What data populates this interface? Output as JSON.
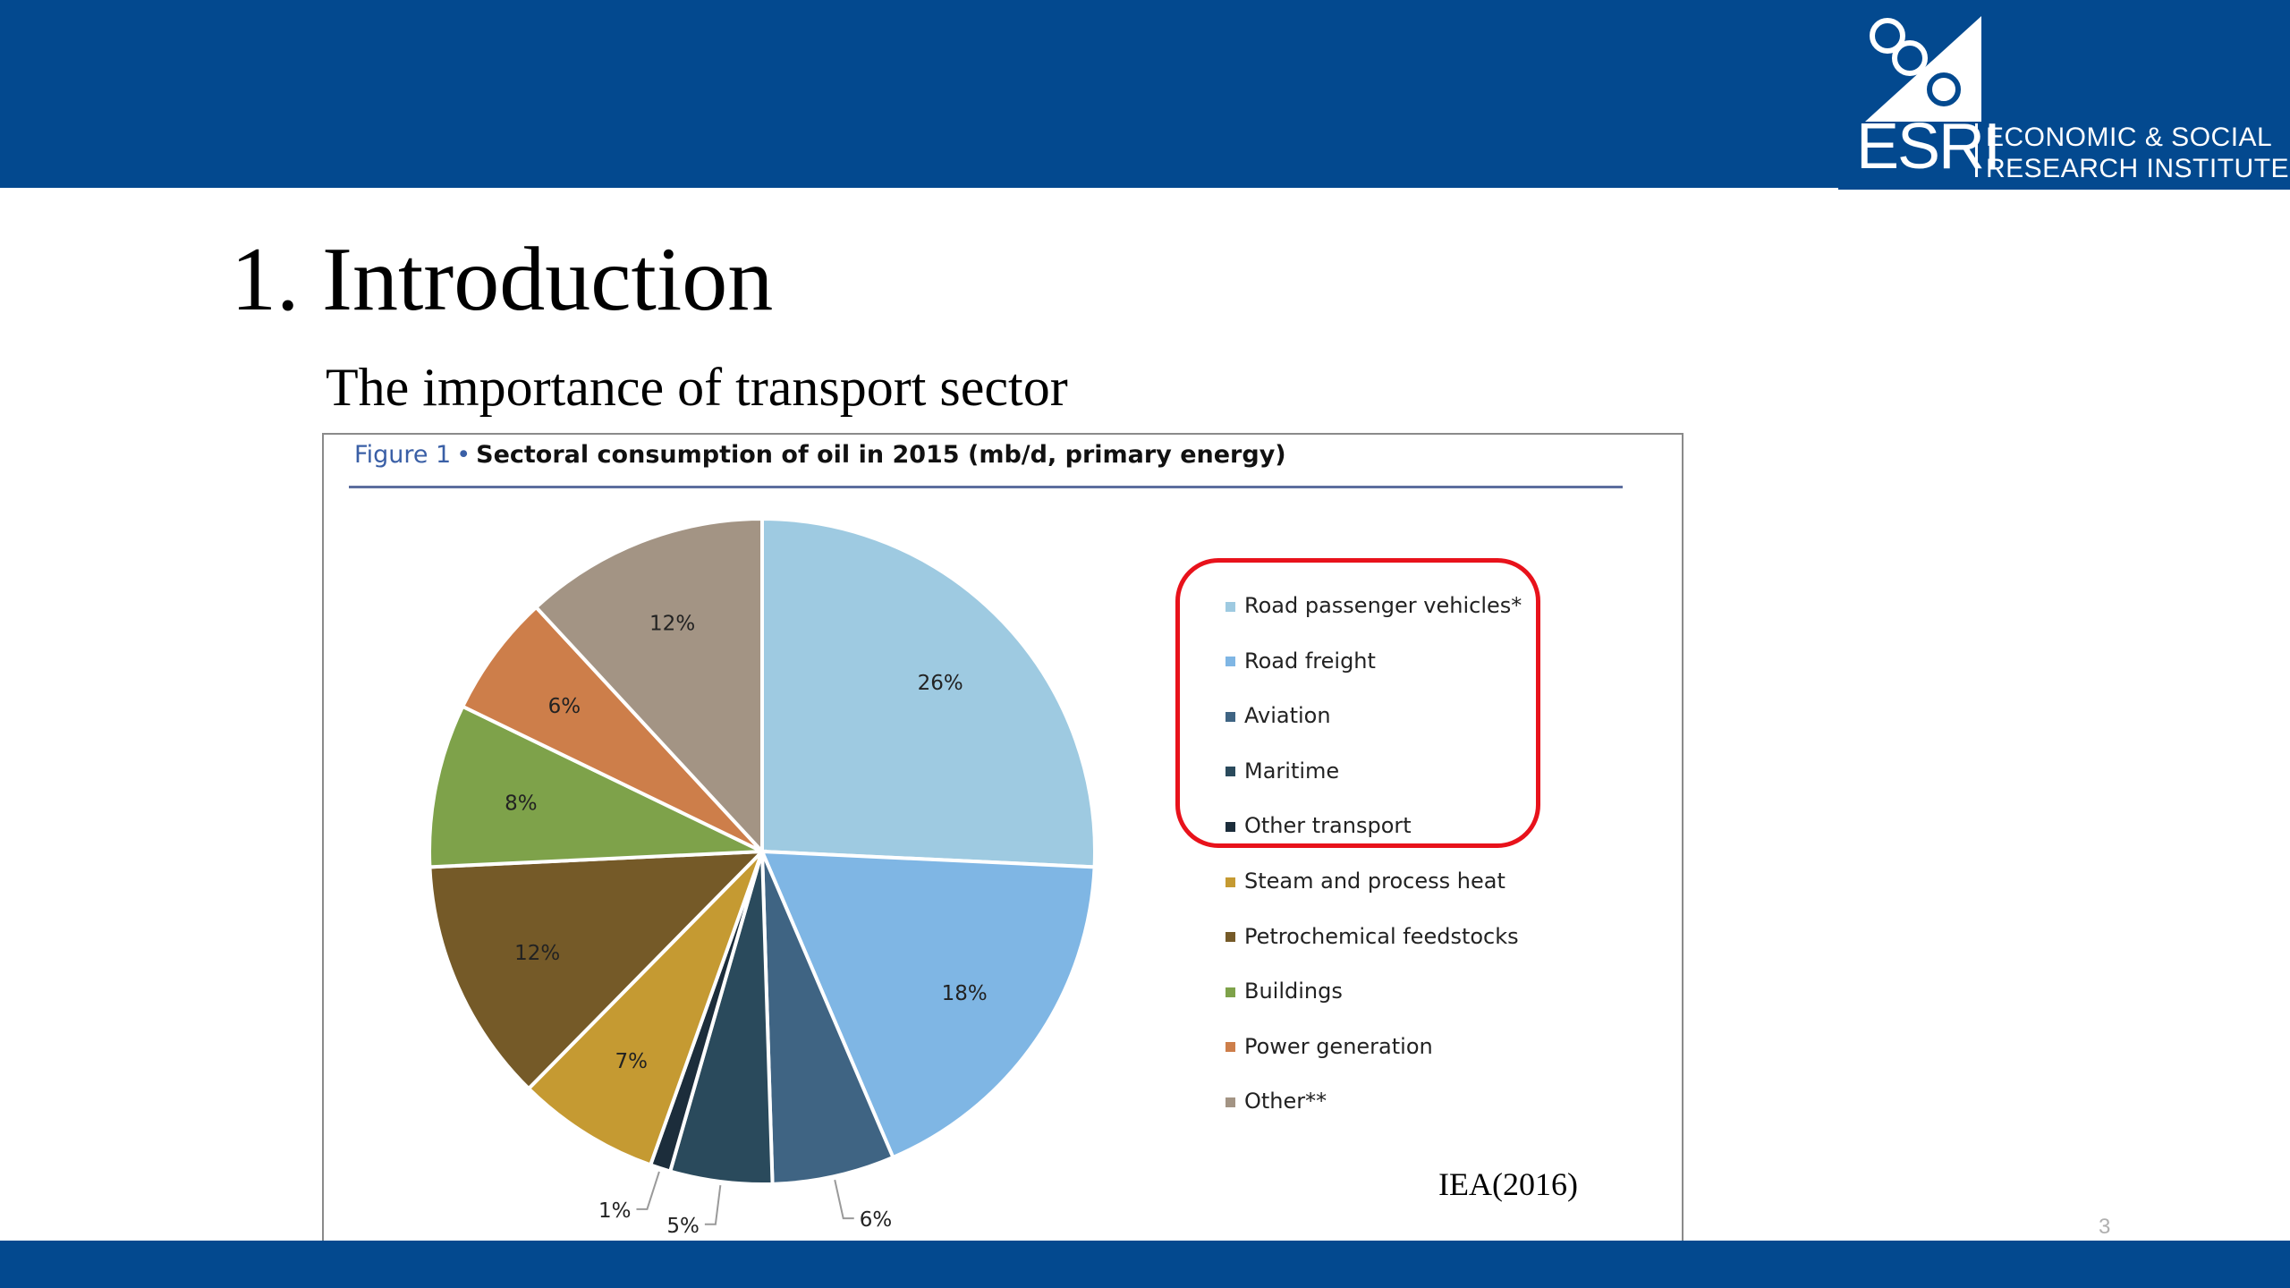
{
  "logo": {
    "mark_text": "ESRI",
    "name_line1": "ECONOMIC & SOCIAL",
    "name_line2": "RESEARCH INSTITUTE"
  },
  "slide": {
    "title": "1. Introduction",
    "subtitle": "The importance of transport sector",
    "source": "IEA(2016)",
    "page_number": "3"
  },
  "figure": {
    "label": "Figure 1",
    "bullet": "•",
    "title": "Sectoral consumption of oil in 2015 (mb/d, primary energy)"
  },
  "colors": {
    "brand": "#03498f",
    "highlight": "#e8121b"
  },
  "chart_data": {
    "type": "pie",
    "title": "Sectoral consumption of oil in 2015 (mb/d, primary energy)",
    "unit": "%",
    "legend_position": "right",
    "highlighted_categories": [
      "Road passenger vehicles*",
      "Road freight",
      "Aviation",
      "Maritime",
      "Other transport"
    ],
    "slices": [
      {
        "label": "Road passenger vehicles*",
        "value": 26,
        "value_label": "26%",
        "color": "#9ecae1"
      },
      {
        "label": "Road freight",
        "value": 18,
        "value_label": "18%",
        "color": "#7fb6e4"
      },
      {
        "label": "Aviation",
        "value": 6,
        "value_label": "6%",
        "color": "#3f6483"
      },
      {
        "label": "Maritime",
        "value": 5,
        "value_label": "5%",
        "color": "#2a4a5c"
      },
      {
        "label": "Other transport",
        "value": 1,
        "value_label": "1%",
        "color": "#1c2d3b"
      },
      {
        "label": "Steam and process heat",
        "value": 7,
        "value_label": "7%",
        "color": "#c59a32"
      },
      {
        "label": "Petrochemical feedstocks",
        "value": 12,
        "value_label": "12%",
        "color": "#755a28"
      },
      {
        "label": "Buildings",
        "value": 8,
        "value_label": "8%",
        "color": "#7ea24a"
      },
      {
        "label": "Power generation",
        "value": 6,
        "value_label": "6%",
        "color": "#cd7e4a"
      },
      {
        "label": "Other**",
        "value": 12,
        "value_label": "12%",
        "color": "#a39484"
      }
    ]
  }
}
